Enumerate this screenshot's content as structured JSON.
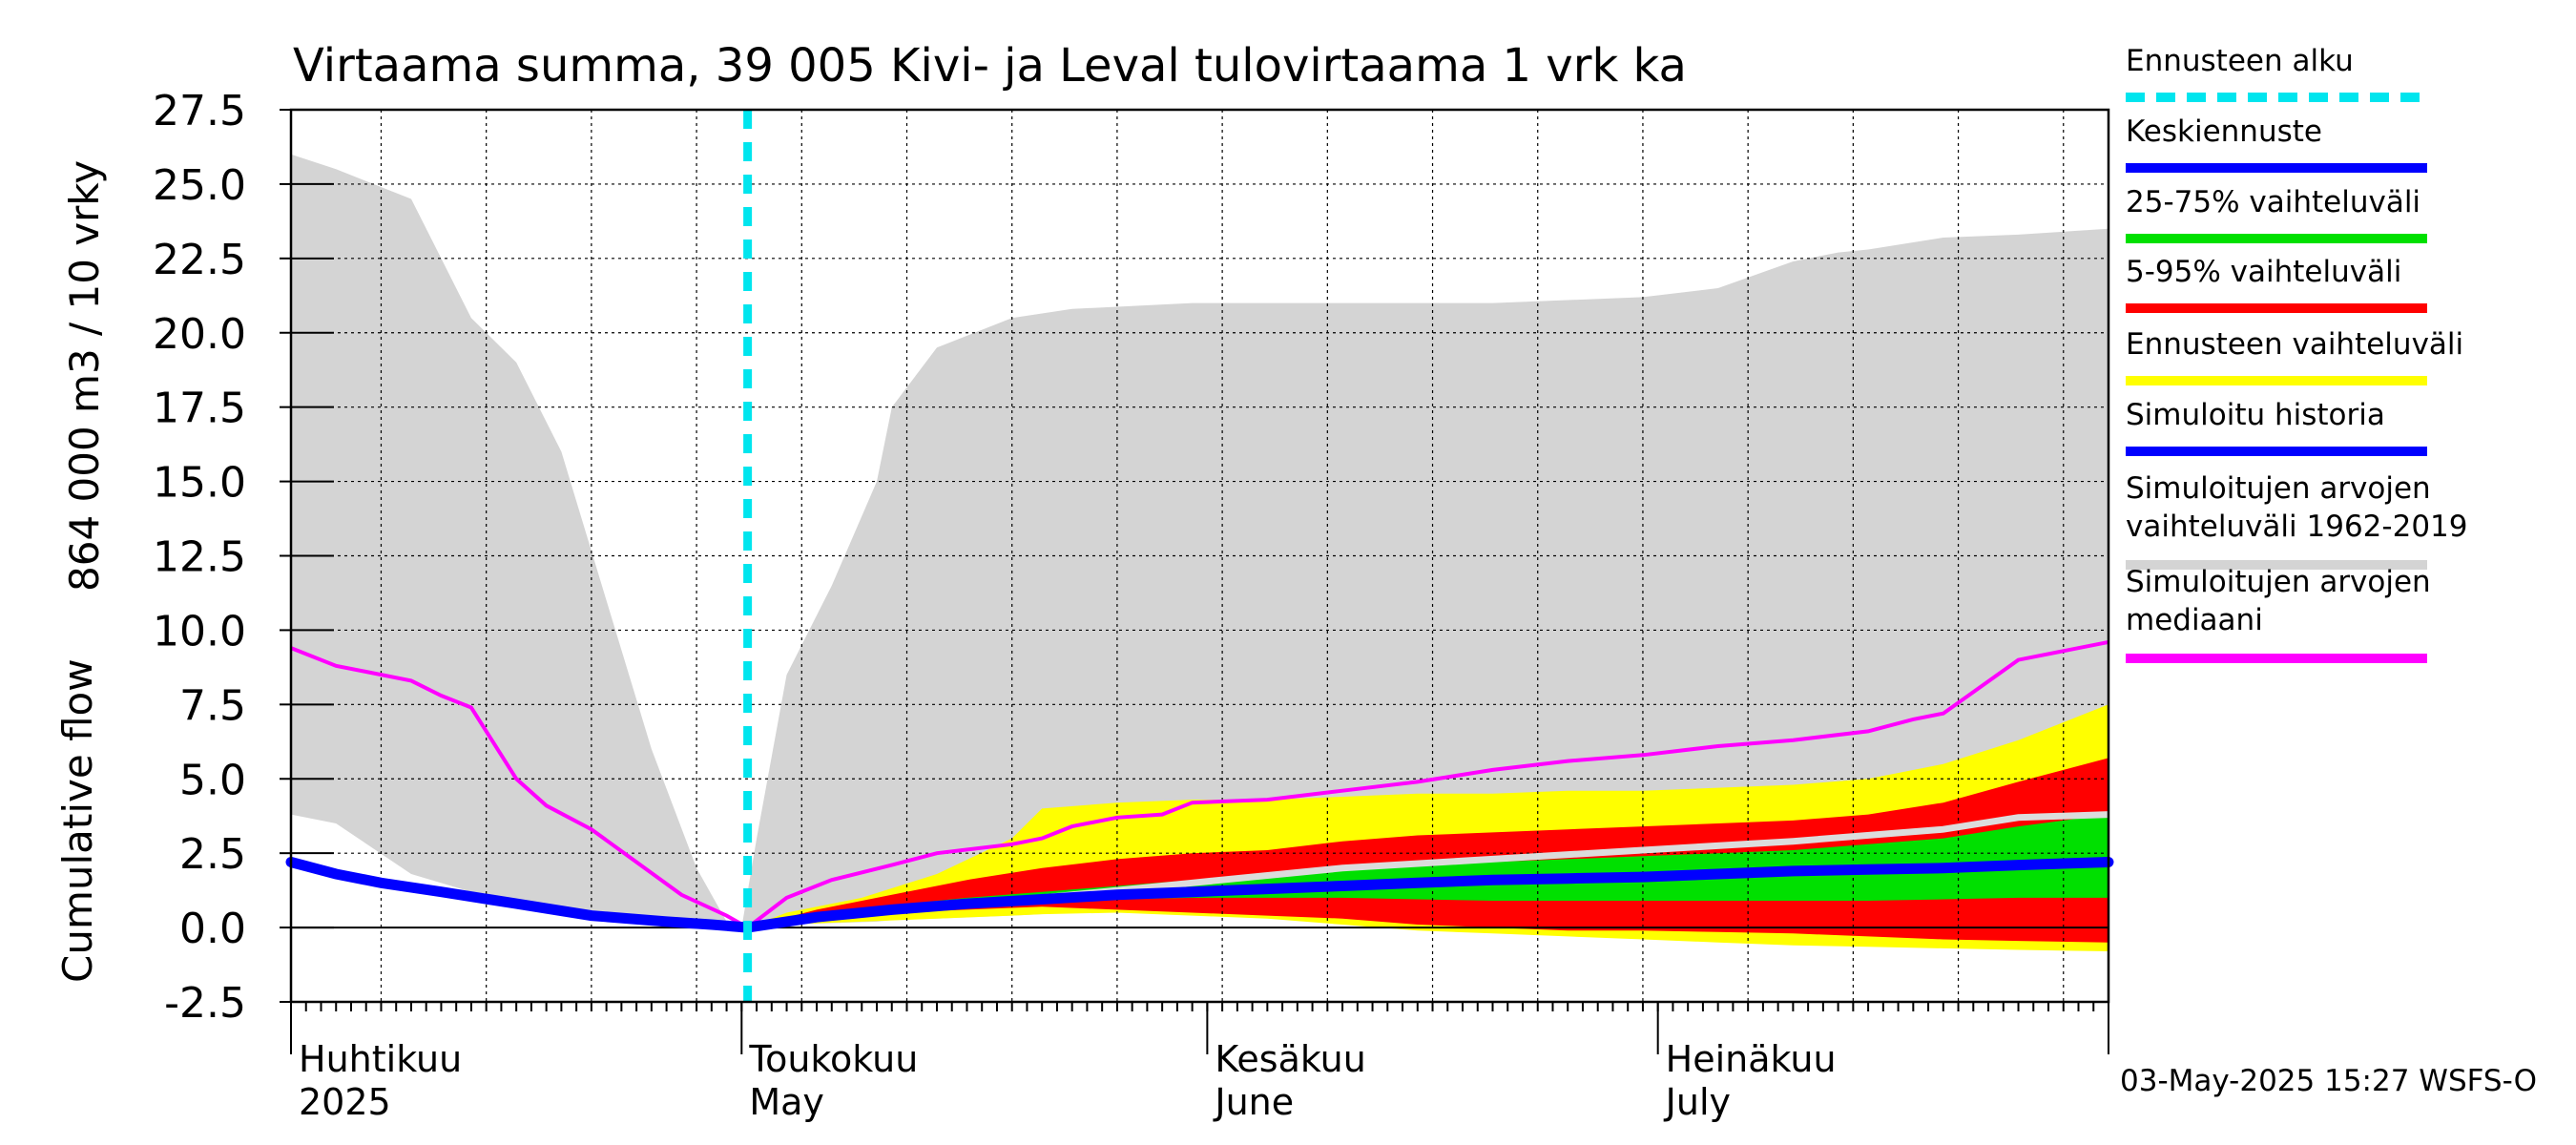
{
  "chart_data": {
    "type": "area",
    "title": "Virtaama summa, 39 005 Kivi- ja Leval tulovirtaama 1 vrk ka",
    "ylabel_fi": "864 000 m3 / 10 vrky",
    "ylabel_en": "Cumulative flow",
    "ylim": [
      -2.5,
      27.5
    ],
    "yticks": [
      "27.5",
      "25.0",
      "22.5",
      "20.0",
      "17.5",
      "15.0",
      "12.5",
      "10.0",
      "7.5",
      "5.0",
      "2.5",
      "0.0",
      "-2.5"
    ],
    "x_months": [
      {
        "fi": "Huhtikuu",
        "en": "2025"
      },
      {
        "fi": "Toukokuu",
        "en": "May"
      },
      {
        "fi": "Kesäkuu",
        "en": "June"
      },
      {
        "fi": "Heinäkuu",
        "en": "July"
      }
    ],
    "x_range_days": [
      0,
      121
    ],
    "forecast_start_day": 30.4,
    "grid": true,
    "legend_placement": "right",
    "colors": {
      "forecast_start": "#00e5ee",
      "mean_forecast": "#0000ff",
      "p25_75": "#00e000",
      "p5_95": "#ff0000",
      "forecast_range": "#ffff00",
      "simulated_history": "#0000ff",
      "historical_range": "#d4d4d4",
      "historical_median": "#ff00ff",
      "median_forecast_light": "#dcdcdc"
    },
    "series": [
      {
        "name": "Simuloitujen arvojen vaihteluväli 1962-2019",
        "x": [
          0,
          3,
          8,
          12,
          15,
          18,
          21,
          24,
          27,
          29,
          30,
          31,
          33,
          36,
          39,
          40,
          43,
          48,
          52,
          60,
          70,
          80,
          90,
          95,
          100,
          103,
          105,
          110,
          115,
          121
        ],
        "upper": [
          26,
          25.5,
          24.5,
          20.5,
          19,
          16,
          11,
          6,
          2,
          0.2,
          0,
          3,
          8.5,
          11.5,
          15,
          17.5,
          19.5,
          20.5,
          20.8,
          21,
          21,
          21,
          21.2,
          21.5,
          22.4,
          22.7,
          22.8,
          23.2,
          23.3,
          23.5
        ],
        "lower": [
          3.8,
          3.5,
          1.8,
          1.2,
          0.8,
          0.5,
          0.2,
          0.1,
          0.1,
          0.05,
          0,
          0.05,
          0.1,
          0.15,
          0.2,
          0.25,
          0.3,
          0.4,
          0.5,
          0.6,
          0.7,
          0.8,
          0.9,
          1.0,
          1.1,
          1.2,
          1.3,
          1.5,
          1.7,
          2.0
        ]
      },
      {
        "name": "Ennusteen vaihteluväli",
        "x": [
          30.4,
          33,
          38,
          43,
          48,
          50,
          55,
          60,
          65,
          70,
          75,
          80,
          85,
          90,
          95,
          100,
          105,
          110,
          115,
          121
        ],
        "upper": [
          0,
          0.5,
          1.0,
          1.8,
          3.0,
          4.0,
          4.2,
          4.3,
          4.3,
          4.4,
          4.5,
          4.5,
          4.6,
          4.6,
          4.7,
          4.8,
          5.0,
          5.5,
          6.3,
          7.5
        ],
        "lower": [
          0,
          0.1,
          0.2,
          0.3,
          0.4,
          0.45,
          0.5,
          0.4,
          0.3,
          0.1,
          -0.1,
          -0.2,
          -0.3,
          -0.4,
          -0.5,
          -0.6,
          -0.65,
          -0.7,
          -0.75,
          -0.8
        ]
      },
      {
        "name": "5-95% vaihteluväli",
        "x": [
          30.4,
          35,
          40,
          45,
          50,
          55,
          60,
          65,
          70,
          75,
          80,
          85,
          90,
          95,
          100,
          105,
          110,
          115,
          121
        ],
        "upper": [
          0,
          0.6,
          1.1,
          1.6,
          2.0,
          2.3,
          2.5,
          2.6,
          2.9,
          3.1,
          3.2,
          3.3,
          3.4,
          3.5,
          3.6,
          3.8,
          4.2,
          4.9,
          5.7
        ],
        "lower": [
          0,
          0.3,
          0.5,
          0.6,
          0.7,
          0.6,
          0.5,
          0.4,
          0.3,
          0.1,
          0.0,
          -0.1,
          -0.1,
          -0.15,
          -0.2,
          -0.3,
          -0.4,
          -0.45,
          -0.5
        ]
      },
      {
        "name": "25-75% vaihteluväli",
        "x": [
          30.4,
          35,
          40,
          45,
          50,
          55,
          60,
          65,
          70,
          75,
          80,
          85,
          90,
          95,
          100,
          105,
          110,
          115,
          121
        ],
        "upper": [
          0,
          0.5,
          0.75,
          1.0,
          1.2,
          1.4,
          1.6,
          1.8,
          2.0,
          2.1,
          2.2,
          2.3,
          2.4,
          2.5,
          2.6,
          2.8,
          3.0,
          3.4,
          3.8
        ],
        "lower": [
          0,
          0.4,
          0.6,
          0.8,
          0.9,
          0.95,
          1.0,
          1.0,
          1.0,
          0.95,
          0.9,
          0.9,
          0.9,
          0.9,
          0.9,
          0.9,
          0.95,
          1.0,
          1.0
        ]
      },
      {
        "name": "Simuloitujen arvojen mediaani",
        "x": [
          0,
          3,
          5,
          8,
          10,
          12,
          15,
          17,
          20,
          23,
          26,
          29,
          30.4,
          33,
          36,
          40,
          43,
          48,
          50,
          52,
          55,
          58,
          60,
          65,
          70,
          75,
          80,
          85,
          90,
          95,
          100,
          105,
          108,
          110,
          115,
          121
        ],
        "values": [
          9.4,
          8.8,
          8.6,
          8.3,
          7.8,
          7.4,
          5.0,
          4.1,
          3.3,
          2.2,
          1.1,
          0.4,
          0,
          1.0,
          1.6,
          2.1,
          2.5,
          2.8,
          3.0,
          3.4,
          3.7,
          3.8,
          4.2,
          4.3,
          4.6,
          4.9,
          5.3,
          5.6,
          5.8,
          6.1,
          6.3,
          6.6,
          7.0,
          7.2,
          9.0,
          9.6
        ]
      },
      {
        "name": "Simuloitu historia",
        "x": [
          0,
          3,
          6,
          10,
          15,
          20,
          25,
          28,
          30.4
        ],
        "values": [
          2.2,
          1.8,
          1.5,
          1.2,
          0.8,
          0.4,
          0.2,
          0.1,
          0
        ]
      },
      {
        "name": "Keskiennuste",
        "x": [
          30.4,
          35,
          40,
          45,
          50,
          55,
          60,
          65,
          70,
          75,
          80,
          85,
          90,
          95,
          100,
          105,
          110,
          115,
          121
        ],
        "values": [
          0,
          0.35,
          0.6,
          0.8,
          0.95,
          1.1,
          1.2,
          1.3,
          1.4,
          1.5,
          1.6,
          1.65,
          1.7,
          1.8,
          1.9,
          1.95,
          2.0,
          2.1,
          2.2
        ]
      },
      {
        "name": "median_forecast_light",
        "x": [
          30.4,
          40,
          50,
          60,
          70,
          80,
          90,
          100,
          110,
          115,
          121
        ],
        "values": [
          0,
          0.6,
          1.0,
          1.5,
          2.0,
          2.3,
          2.6,
          2.9,
          3.3,
          3.7,
          3.8
        ]
      }
    ]
  },
  "legend": [
    {
      "label": "Ennusteen alku",
      "color": "#00e5ee",
      "style": "dashed"
    },
    {
      "label": "Keskiennuste",
      "color": "#0000ff",
      "style": "solid"
    },
    {
      "label": "25-75% vaihteluväli",
      "color": "#00e000",
      "style": "solid"
    },
    {
      "label": "5-95% vaihteluväli",
      "color": "#ff0000",
      "style": "solid"
    },
    {
      "label": "Ennusteen vaihteluväli",
      "color": "#ffff00",
      "style": "solid"
    },
    {
      "label": "Simuloitu historia",
      "color": "#0000ff",
      "style": "solid"
    },
    {
      "label": "Simuloitujen arvojen",
      "label2": "vaihteluväli 1962-2019",
      "color": "#d4d4d4",
      "style": "solid"
    },
    {
      "label": "Simuloitujen arvojen",
      "label2": "mediaani",
      "color": "#ff00ff",
      "style": "solid"
    }
  ],
  "timestamp": "03-May-2025 15:27 WSFS-O"
}
